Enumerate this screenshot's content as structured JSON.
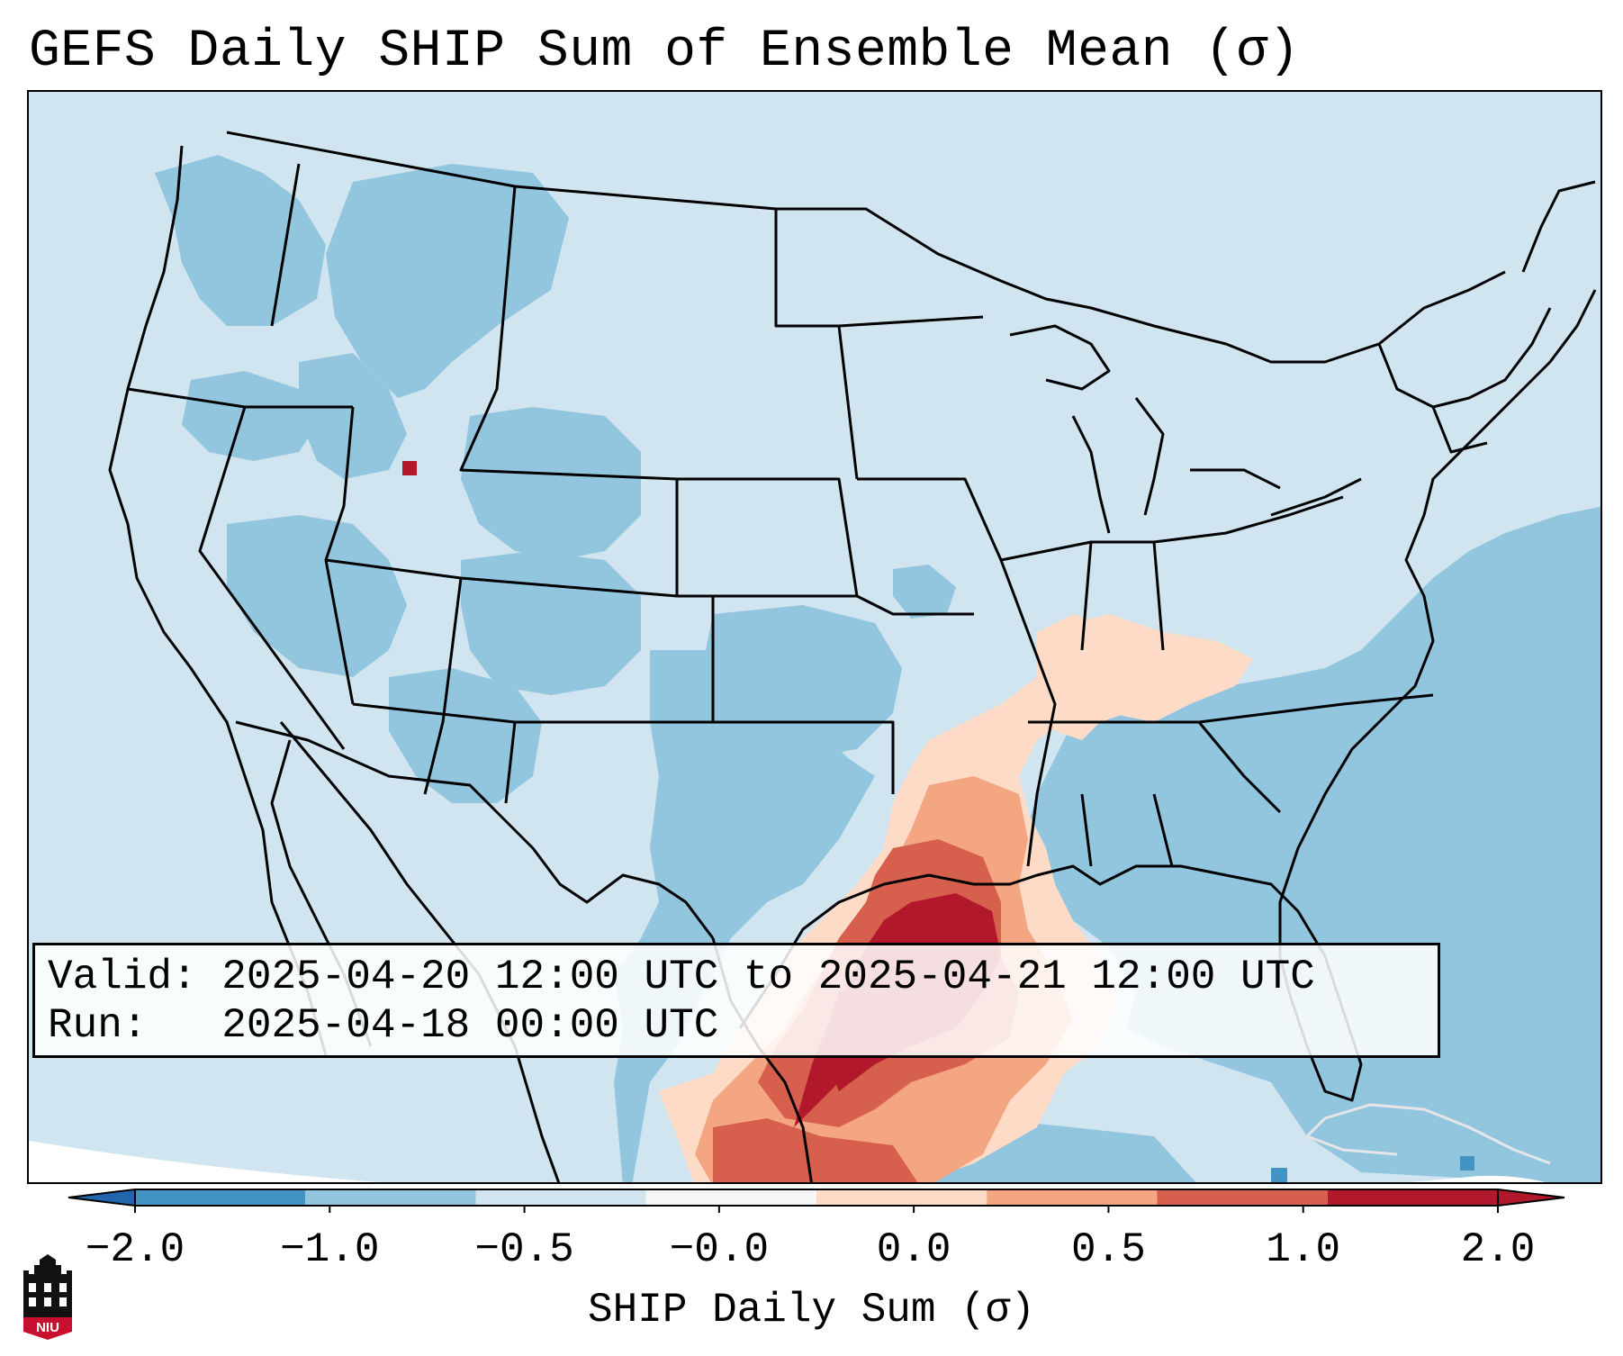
{
  "title": "GEFS Daily SHIP Sum of Ensemble Mean (σ)",
  "valid_line": "Valid: 2025-04-20 12:00 UTC to 2025-04-21 12:00 UTC",
  "run_line": "Run:   2025-04-18 00:00 UTC",
  "logo_text": "NIU",
  "colorbar": {
    "label": "SHIP Daily Sum (σ)",
    "tick_labels": [
      "−2.0",
      "−1.0",
      "−0.5",
      "−0.0",
      "0.0",
      "0.5",
      "1.0",
      "2.0"
    ],
    "colors": [
      "#4393c3",
      "#92c5de",
      "#d1e5f0",
      "#f7f7f7",
      "#fddbc7",
      "#f4a582",
      "#d6604d",
      "#b2182b"
    ],
    "under_color": "#2166ac",
    "over_color": "#b2182b",
    "extend": "both"
  },
  "colors": {
    "ocean_background": "#d1e5f0",
    "out_of_domain": "#ffffff",
    "borders": "#000000"
  }
}
